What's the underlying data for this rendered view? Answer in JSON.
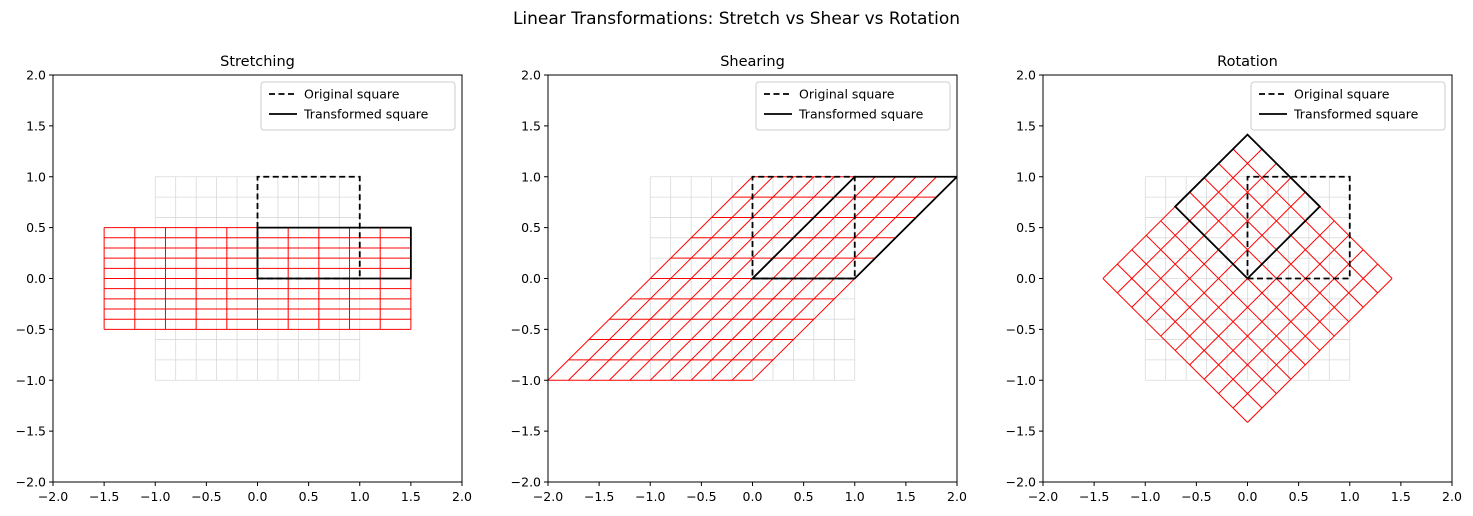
{
  "chart_data": {
    "suptitle": "Linear Transformations: Stretch vs Shear vs Rotation",
    "grid_range": [
      -1,
      1
    ],
    "grid_step": 0.2,
    "original_square": [
      [
        0,
        0
      ],
      [
        1,
        0
      ],
      [
        1,
        1
      ],
      [
        0,
        1
      ]
    ],
    "colors": {
      "original_grid": "#d9d9d9",
      "transformed_grid": "#ff0000",
      "square": "#000000"
    },
    "legend": {
      "placement": "top-right",
      "original_label": "Original square",
      "transformed_label": "Transformed square"
    },
    "panels": [
      {
        "type": "line",
        "title": "Stretching",
        "matrix": [
          [
            1.5,
            0
          ],
          [
            0,
            0.5
          ]
        ],
        "xlim": [
          -2,
          2
        ],
        "ylim": [
          -2,
          2
        ],
        "xticks": [
          "−2.0",
          "−1.5",
          "−1.0",
          "−0.5",
          "0.0",
          "0.5",
          "1.0",
          "1.5",
          "2.0"
        ],
        "yticks": [
          "−2.0",
          "−1.5",
          "−1.0",
          "−0.5",
          "0.0",
          "0.5",
          "1.0",
          "1.5",
          "2.0"
        ]
      },
      {
        "type": "line",
        "title": "Shearing",
        "matrix": [
          [
            1,
            1
          ],
          [
            0,
            1
          ]
        ],
        "xlim": [
          -2,
          2
        ],
        "ylim": [
          -2,
          2
        ],
        "xticks": [
          "−2.0",
          "−1.5",
          "−1.0",
          "−0.5",
          "0.0",
          "0.5",
          "1.0",
          "1.5",
          "2.0"
        ],
        "yticks": [
          "−2.0",
          "−1.5",
          "−1.0",
          "−0.5",
          "0.0",
          "0.5",
          "1.0",
          "1.5",
          "2.0"
        ]
      },
      {
        "type": "line",
        "title": "Rotation",
        "matrix": [
          [
            0.7071,
            -0.7071
          ],
          [
            0.7071,
            0.7071
          ]
        ],
        "xlim": [
          -2,
          2
        ],
        "ylim": [
          -2,
          2
        ],
        "xticks": [
          "−2.0",
          "−1.5",
          "−1.0",
          "−0.5",
          "0.0",
          "0.5",
          "1.0",
          "1.5",
          "2.0"
        ],
        "yticks": [
          "−2.0",
          "−1.5",
          "−1.0",
          "−0.5",
          "0.0",
          "0.5",
          "1.0",
          "1.5",
          "2.0"
        ]
      }
    ]
  }
}
